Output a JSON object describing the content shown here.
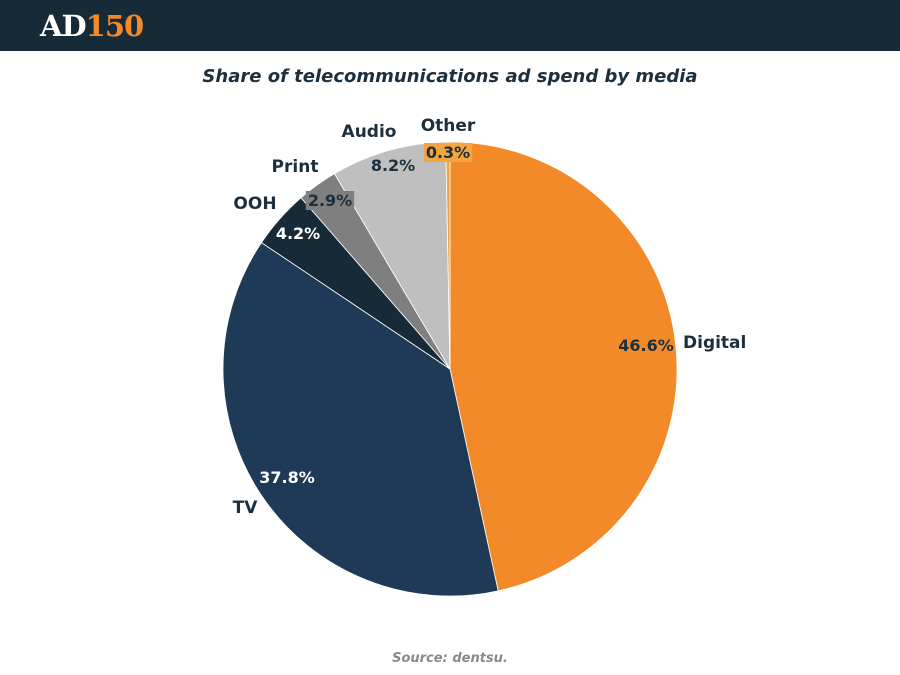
{
  "brand": {
    "logo_ad": "AD",
    "logo_num": "150"
  },
  "chart_data": {
    "type": "pie",
    "title": "Share of telecommunications ad spend by media",
    "source": "Source: dentsu.",
    "categories": [
      "Digital",
      "TV",
      "OOH",
      "Print",
      "Audio",
      "Other"
    ],
    "values": [
      46.6,
      37.8,
      4.2,
      2.9,
      8.2,
      0.3
    ],
    "value_labels": [
      "46.6%",
      "37.8%",
      "4.2%",
      "2.9%",
      "8.2%",
      "0.3%"
    ],
    "colors": [
      "#f28a2a",
      "#1f3a57",
      "#172a38",
      "#7f7f7f",
      "#bfbfbf",
      "#f5a540"
    ],
    "start": "12 o'clock",
    "direction": "clockwise"
  }
}
